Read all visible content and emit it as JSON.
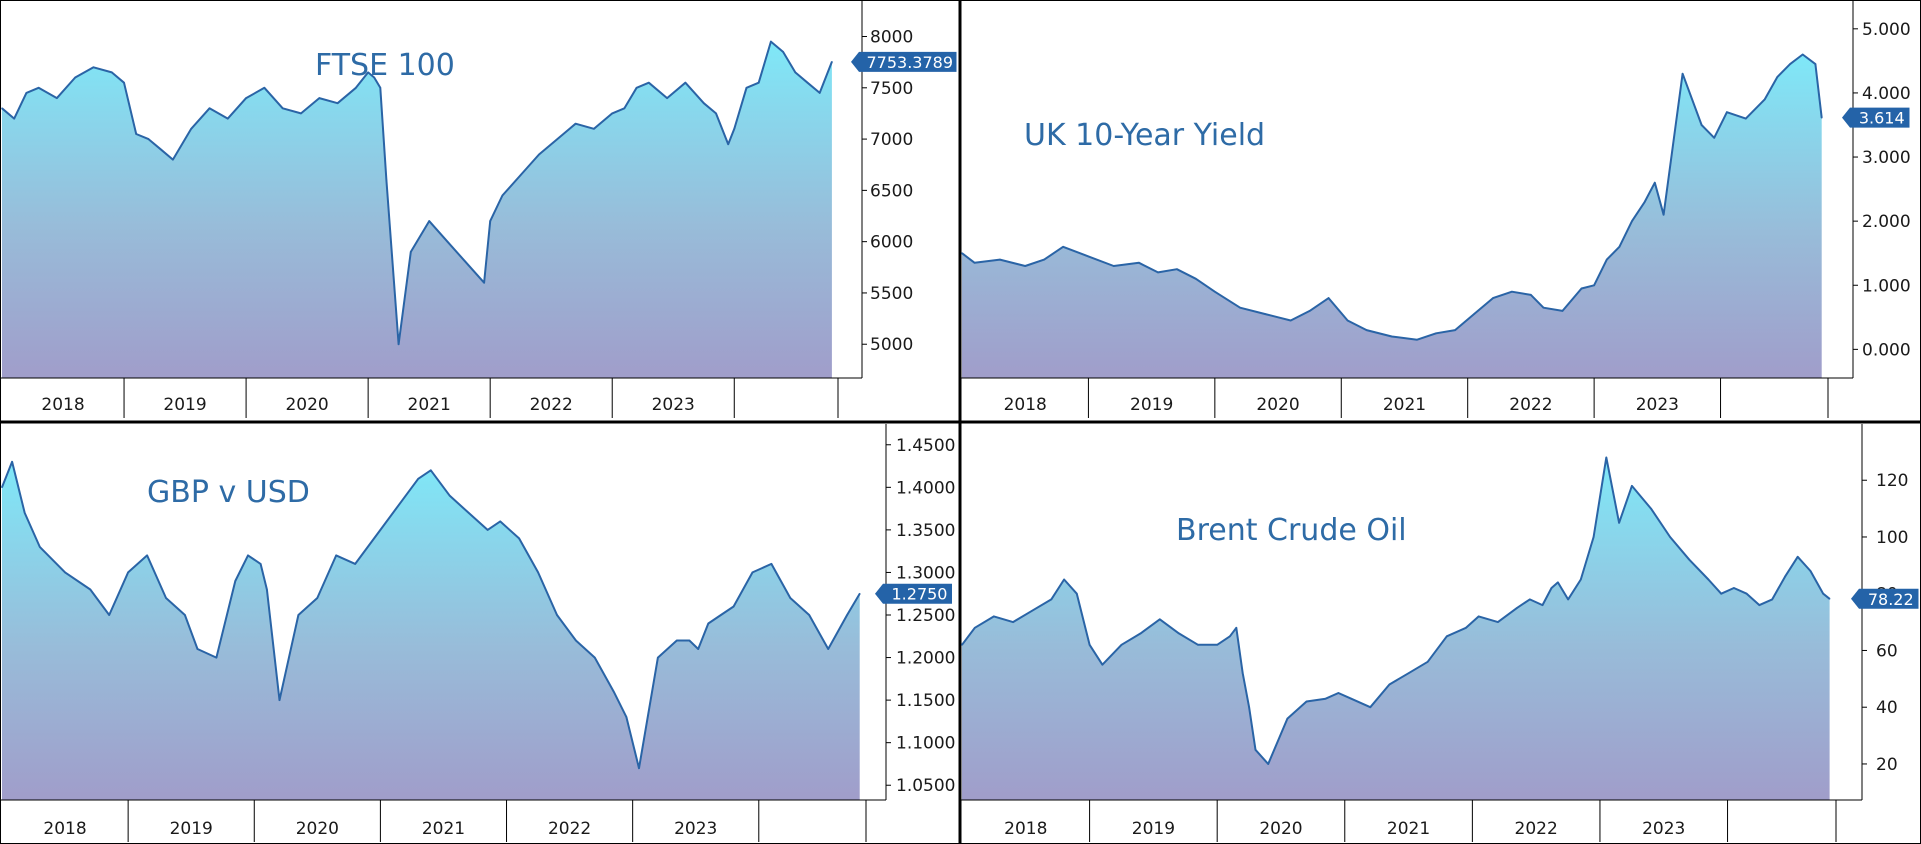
{
  "chart_data": [
    {
      "type": "area",
      "title": "FTSE 100",
      "last_value": "7753.3789",
      "ylim": [
        4700,
        8200
      ],
      "yticks": [
        5000,
        5500,
        6000,
        6500,
        7000,
        7500,
        8000
      ],
      "ytick_labels": [
        "5000",
        "5500",
        "6000",
        "6500",
        "7000",
        "7500",
        "8000"
      ],
      "xlim": [
        2017.0,
        2023.85
      ],
      "x_labels": [
        "2018",
        "2019",
        "2020",
        "2021",
        "2022",
        "2023"
      ],
      "x_dividers": [
        2018.0,
        2019.0,
        2020.0,
        2021.0,
        2022.0,
        2023.0
      ],
      "x": [
        2017.0,
        2017.1,
        2017.2,
        2017.3,
        2017.45,
        2017.6,
        2017.75,
        2017.9,
        2018.0,
        2018.1,
        2018.2,
        2018.3,
        2018.4,
        2018.55,
        2018.7,
        2018.85,
        2019.0,
        2019.15,
        2019.3,
        2019.45,
        2019.6,
        2019.75,
        2019.9,
        2020.0,
        2020.05,
        2020.1,
        2020.15,
        2020.25,
        2020.35,
        2020.5,
        2020.65,
        2020.8,
        2020.95,
        2021.0,
        2021.1,
        2021.25,
        2021.4,
        2021.55,
        2021.7,
        2021.85,
        2022.0,
        2022.1,
        2022.2,
        2022.3,
        2022.45,
        2022.6,
        2022.75,
        2022.85,
        2022.95,
        2023.0,
        2023.1,
        2023.2,
        2023.3,
        2023.4,
        2023.5,
        2023.6,
        2023.7,
        2023.8
      ],
      "values": [
        7300,
        7200,
        7450,
        7500,
        7400,
        7600,
        7700,
        7650,
        7550,
        7050,
        7000,
        6900,
        6800,
        7100,
        7300,
        7200,
        7400,
        7500,
        7300,
        7250,
        7400,
        7350,
        7500,
        7650,
        7600,
        7500,
        6600,
        5000,
        5900,
        6200,
        6000,
        5800,
        5600,
        6200,
        6450,
        6650,
        6850,
        7000,
        7150,
        7100,
        7250,
        7300,
        7500,
        7550,
        7400,
        7550,
        7350,
        7250,
        6950,
        7100,
        7500,
        7550,
        7950,
        7850,
        7650,
        7550,
        7450,
        7753
      ]
    },
    {
      "type": "area",
      "title": "UK 10-Year Yield",
      "last_value": "3.614",
      "ylim": [
        -0.4,
        5.2
      ],
      "yticks": [
        0,
        1,
        2,
        3,
        4,
        5
      ],
      "ytick_labels": [
        "0.000",
        "1.000",
        "2.000",
        "3.000",
        "4.000",
        "5.000"
      ],
      "xlim": [
        2017.0,
        2023.85
      ],
      "x_labels": [
        "2018",
        "2019",
        "2020",
        "2021",
        "2022",
        "2023"
      ],
      "x_dividers": [
        2018.0,
        2019.0,
        2020.0,
        2021.0,
        2022.0,
        2023.0
      ],
      "x": [
        2017.0,
        2017.1,
        2017.3,
        2017.5,
        2017.65,
        2017.8,
        2018.0,
        2018.2,
        2018.4,
        2018.55,
        2018.7,
        2018.85,
        2019.0,
        2019.2,
        2019.4,
        2019.5,
        2019.6,
        2019.75,
        2019.9,
        2020.05,
        2020.2,
        2020.4,
        2020.6,
        2020.75,
        2020.9,
        2021.05,
        2021.2,
        2021.35,
        2021.5,
        2021.6,
        2021.75,
        2021.9,
        2022.0,
        2022.1,
        2022.2,
        2022.3,
        2022.4,
        2022.48,
        2022.55,
        2022.7,
        2022.85,
        2022.95,
        2023.05,
        2023.2,
        2023.35,
        2023.45,
        2023.55,
        2023.65,
        2023.75,
        2023.8
      ],
      "values": [
        1.5,
        1.35,
        1.4,
        1.3,
        1.4,
        1.6,
        1.45,
        1.3,
        1.35,
        1.2,
        1.25,
        1.1,
        0.9,
        0.65,
        0.55,
        0.5,
        0.45,
        0.6,
        0.8,
        0.45,
        0.3,
        0.2,
        0.15,
        0.25,
        0.3,
        0.55,
        0.8,
        0.9,
        0.85,
        0.65,
        0.6,
        0.95,
        1.0,
        1.4,
        1.6,
        2.0,
        2.3,
        2.6,
        2.1,
        4.3,
        3.5,
        3.3,
        3.7,
        3.6,
        3.9,
        4.25,
        4.45,
        4.6,
        4.45,
        3.614
      ]
    },
    {
      "type": "area",
      "title": "GBP v USD",
      "last_value": "1.2750",
      "ylim": [
        1.035,
        1.465
      ],
      "yticks": [
        1.05,
        1.1,
        1.15,
        1.2,
        1.25,
        1.3,
        1.35,
        1.4,
        1.45
      ],
      "ytick_labels": [
        "1.0500",
        "1.1000",
        "1.1500",
        "1.2000",
        "1.2500",
        "1.3000",
        "1.3500",
        "1.4000",
        "1.4500"
      ],
      "xlim": [
        2017.0,
        2023.85
      ],
      "x_labels": [
        "2018",
        "2019",
        "2020",
        "2021",
        "2022",
        "2023"
      ],
      "x_dividers": [
        2018.0,
        2019.0,
        2020.0,
        2021.0,
        2022.0,
        2023.0
      ],
      "x": [
        2017.0,
        2017.08,
        2017.18,
        2017.3,
        2017.5,
        2017.7,
        2017.85,
        2018.0,
        2018.15,
        2018.3,
        2018.45,
        2018.55,
        2018.7,
        2018.85,
        2018.95,
        2019.05,
        2019.1,
        2019.2,
        2019.35,
        2019.5,
        2019.65,
        2019.8,
        2020.0,
        2020.15,
        2020.3,
        2020.4,
        2020.55,
        2020.7,
        2020.85,
        2020.95,
        2021.1,
        2021.25,
        2021.4,
        2021.55,
        2021.7,
        2021.85,
        2021.95,
        2022.05,
        2022.2,
        2022.35,
        2022.45,
        2022.52,
        2022.6,
        2022.7,
        2022.8,
        2022.95,
        2023.1,
        2023.25,
        2023.4,
        2023.55,
        2023.7,
        2023.8
      ],
      "values": [
        1.4,
        1.43,
        1.37,
        1.33,
        1.3,
        1.28,
        1.25,
        1.3,
        1.32,
        1.27,
        1.25,
        1.21,
        1.2,
        1.29,
        1.32,
        1.31,
        1.28,
        1.15,
        1.25,
        1.27,
        1.32,
        1.31,
        1.35,
        1.38,
        1.41,
        1.42,
        1.39,
        1.37,
        1.35,
        1.36,
        1.34,
        1.3,
        1.25,
        1.22,
        1.2,
        1.16,
        1.13,
        1.07,
        1.2,
        1.22,
        1.22,
        1.21,
        1.24,
        1.25,
        1.26,
        1.3,
        1.31,
        1.27,
        1.25,
        1.21,
        1.25,
        1.275
      ]
    },
    {
      "type": "area",
      "title": "Brent Crude Oil",
      "last_value": "78.22",
      "ylim": [
        8,
        137
      ],
      "yticks": [
        20,
        40,
        60,
        80,
        100,
        120
      ],
      "ytick_labels": [
        "20",
        "40",
        "60",
        "80",
        "100",
        "120"
      ],
      "xlim": [
        2017.0,
        2023.85
      ],
      "x_labels": [
        "2018",
        "2019",
        "2020",
        "2021",
        "2022",
        "2023"
      ],
      "x_dividers": [
        2018.0,
        2019.0,
        2020.0,
        2021.0,
        2022.0,
        2023.0
      ],
      "x": [
        2017.0,
        2017.1,
        2017.25,
        2017.4,
        2017.55,
        2017.7,
        2017.8,
        2017.9,
        2018.0,
        2018.1,
        2018.25,
        2018.4,
        2018.55,
        2018.7,
        2018.85,
        2019.0,
        2019.1,
        2019.15,
        2019.2,
        2019.25,
        2019.3,
        2019.4,
        2019.55,
        2019.7,
        2019.85,
        2019.95,
        2020.05,
        2020.2,
        2020.35,
        2020.5,
        2020.65,
        2020.8,
        2020.95,
        2021.05,
        2021.2,
        2021.35,
        2021.45,
        2021.55,
        2021.62,
        2021.67,
        2021.75,
        2021.85,
        2021.95,
        2022.05,
        2022.15,
        2022.25,
        2022.4,
        2022.55,
        2022.7,
        2022.85,
        2022.95,
        2023.05,
        2023.15,
        2023.25,
        2023.35,
        2023.45,
        2023.55,
        2023.65,
        2023.75,
        2023.8
      ],
      "values": [
        62,
        68,
        72,
        70,
        74,
        78,
        85,
        80,
        62,
        55,
        62,
        66,
        71,
        66,
        62,
        62,
        65,
        68,
        52,
        40,
        25,
        20,
        36,
        42,
        43,
        45,
        43,
        40,
        48,
        52,
        56,
        65,
        68,
        72,
        70,
        75,
        78,
        76,
        82,
        84,
        78,
        85,
        100,
        128,
        105,
        118,
        110,
        100,
        92,
        85,
        80,
        82,
        80,
        76,
        78,
        86,
        93,
        88,
        80,
        78.22
      ]
    }
  ]
}
